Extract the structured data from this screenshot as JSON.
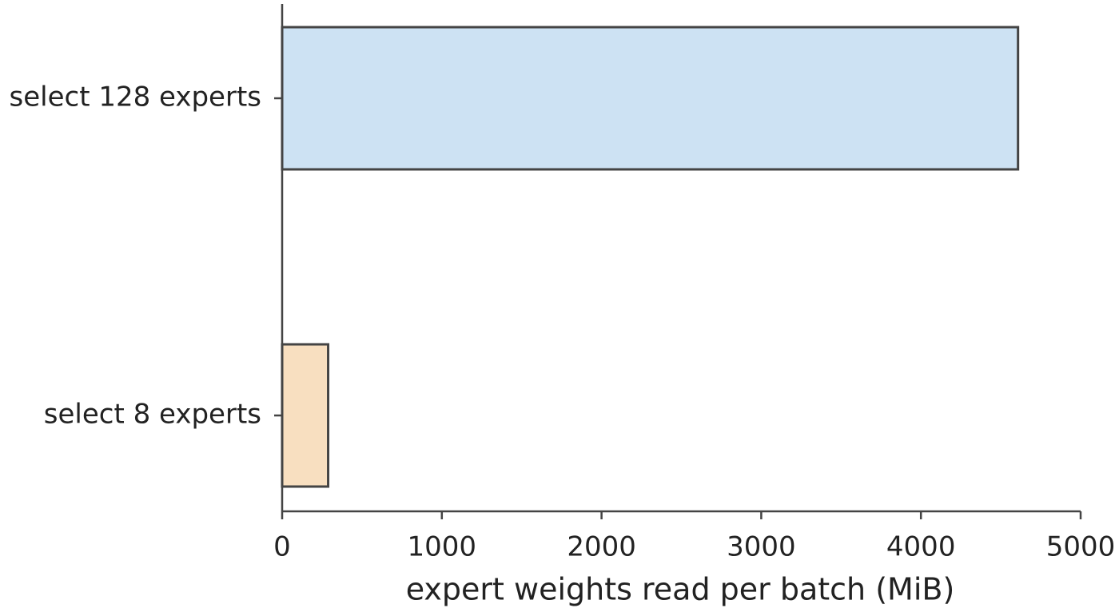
{
  "chart_data": {
    "type": "barh",
    "x_label": "expert weights read per batch (MiB)",
    "categories": [
      "select 128 experts",
      "select 8 experts"
    ],
    "values": [
      4608,
      288
    ],
    "colors": [
      "#cde2f3",
      "#f8dfc0"
    ],
    "edge_color": "#444444",
    "xlim": [
      0,
      5000
    ],
    "xticks": [
      0,
      1000,
      2000,
      3000,
      4000,
      5000
    ]
  }
}
